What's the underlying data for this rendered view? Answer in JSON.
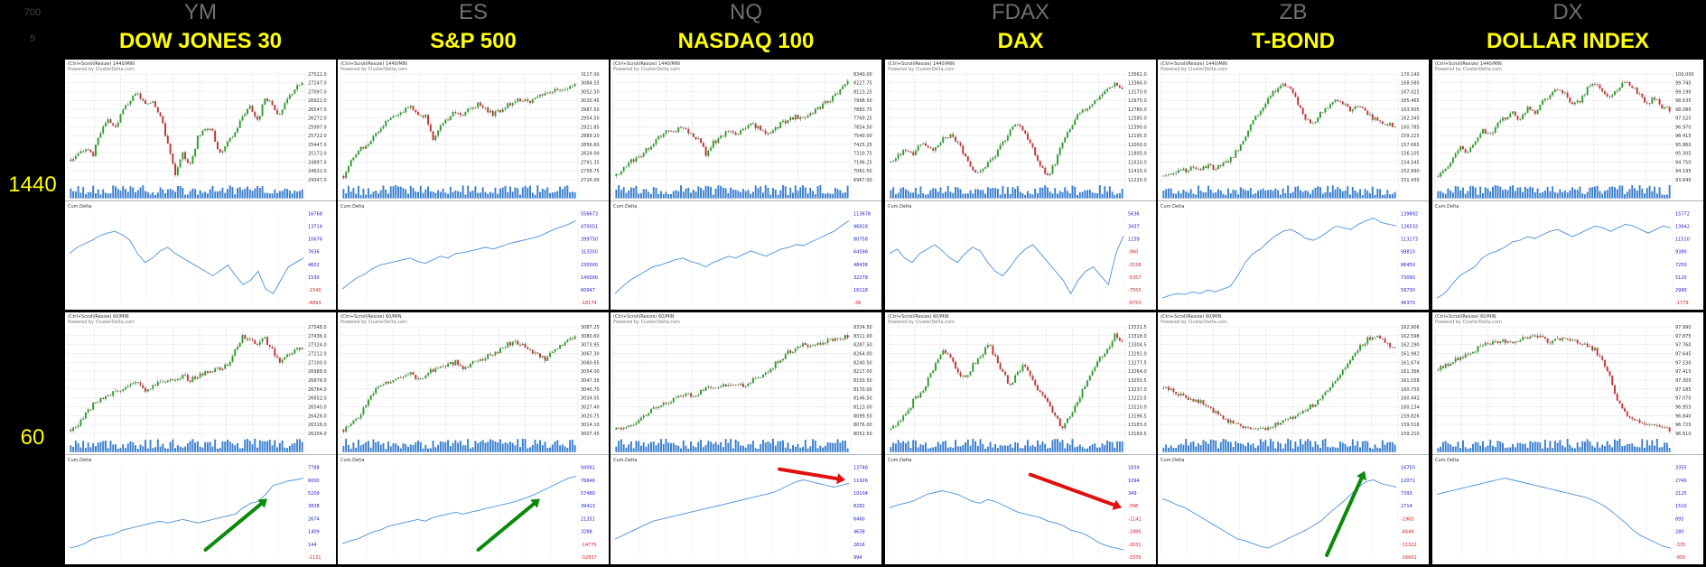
{
  "top_left": {
    "v1": "700",
    "v2": "5"
  },
  "markets": [
    {
      "symbol": "YM",
      "name": "DOW JONES 30"
    },
    {
      "symbol": "ES",
      "name": "S&P 500"
    },
    {
      "symbol": "NQ",
      "name": "NASDAQ 100"
    },
    {
      "symbol": "FDAX",
      "name": "DAX"
    },
    {
      "symbol": "ZB",
      "name": "T-BOND"
    },
    {
      "symbol": "DX",
      "name": "DOLLAR INDEX"
    }
  ],
  "timeframes": [
    "1440",
    "60"
  ],
  "panel_header_1440": [
    "(Ctrl+Scroll/Resize) 1440/MIN",
    "(Ctrl+Scroll/Resize) 1440/MIN",
    "(Ctrl+Scroll/Resize) 1440/MIN",
    "(Ctrl+Scroll/Resize) 1440/MIN",
    "(Ctrl+Scroll/Resize) 1440/MIN",
    "(Ctrl+Scroll/Resize) 1440/MIN"
  ],
  "panel_header_60": [
    "(Ctrl+Scroll/Resize) 60/MIN",
    "(Ctrl+Scroll/Resize) 60/MIN",
    "(Ctrl+Scroll/Resize) 60/MIN",
    "(Ctrl+Scroll/Resize) 60/MIN",
    "(Ctrl+Scroll/Resize) 60/MIN",
    "(Ctrl+Scroll/Resize) 60/MIN"
  ],
  "powered_by": "Powered by ClusterDelta.com",
  "cum_delta_label": "Cum.Delta",
  "colors": {
    "up": "#2aa02a",
    "down": "#c83232",
    "volume": "#3b7fd0",
    "delta_line": "#4a90d9",
    "arrow_green": "#0a8a0a",
    "arrow_red": "#e01010",
    "title": "#ffff00",
    "symbol": "#6f6f6f"
  },
  "chart_data": [
    {
      "market": "YM",
      "timeframe": "1440",
      "type": "line",
      "price_axis": [
        "27522.0",
        "27247.0",
        "27097.0",
        "26922.0",
        "26547.0",
        "26272.0",
        "25997.0",
        "25722.0",
        "25447.0",
        "25172.0",
        "24897.0",
        "24622.0",
        "24347.0"
      ],
      "close": [
        25.8,
        25.9,
        26.0,
        25.9,
        26.3,
        26.5,
        26.4,
        26.7,
        26.9,
        27.0,
        26.8,
        26.9,
        26.6,
        26.1,
        25.5,
        25.9,
        25.7,
        26.2,
        26.4,
        26.3,
        25.9,
        26.1,
        26.3,
        26.6,
        26.8,
        26.5,
        26.9,
        26.8,
        26.6,
        26.9,
        27.1,
        27.2
      ],
      "delta_axis": [
        "16768",
        "13714",
        "10676",
        "7636",
        "4602",
        "1530",
        "-1540",
        "-4893"
      ],
      "delta": [
        0.55,
        0.62,
        0.66,
        0.7,
        0.75,
        0.78,
        0.8,
        0.76,
        0.7,
        0.55,
        0.45,
        0.5,
        0.58,
        0.62,
        0.55,
        0.5,
        0.45,
        0.4,
        0.35,
        0.3,
        0.36,
        0.42,
        0.3,
        0.2,
        0.25,
        0.35,
        0.15,
        0.1,
        0.25,
        0.4,
        0.45,
        0.5
      ]
    },
    {
      "market": "ES",
      "timeframe": "1440",
      "type": "line",
      "price_axis": [
        "3117.00",
        "3084.55",
        "3052.50",
        "3020.45",
        "2987.50",
        "2954.50",
        "2921.85",
        "2889.20",
        "2856.60",
        "2824.00",
        "2791.35",
        "2758.75",
        "2726.00"
      ],
      "close": [
        2.4,
        2.52,
        2.6,
        2.65,
        2.72,
        2.8,
        2.86,
        2.9,
        2.93,
        2.95,
        2.9,
        2.88,
        2.7,
        2.82,
        2.86,
        2.92,
        2.88,
        2.95,
        2.98,
        2.94,
        2.9,
        2.93,
        2.98,
        3.0,
        3.02,
        3.0,
        3.04,
        3.06,
        3.08,
        3.1,
        3.12,
        3.15
      ],
      "delta_axis": [
        "556673",
        "470051",
        "399750",
        "313350",
        "230000",
        "140000",
        "60947",
        "-18174"
      ],
      "delta": [
        0.15,
        0.22,
        0.28,
        0.32,
        0.38,
        0.42,
        0.44,
        0.46,
        0.48,
        0.5,
        0.46,
        0.44,
        0.48,
        0.52,
        0.5,
        0.55,
        0.56,
        0.58,
        0.6,
        0.62,
        0.6,
        0.63,
        0.66,
        0.68,
        0.7,
        0.72,
        0.74,
        0.78,
        0.82,
        0.85,
        0.88,
        0.92
      ]
    },
    {
      "market": "NQ",
      "timeframe": "1440",
      "type": "line",
      "price_axis": [
        "8340.00",
        "8227.75",
        "8113.25",
        "7998.50",
        "7883.75",
        "7769.25",
        "7654.50",
        "7540.00",
        "7425.25",
        "7310.75",
        "7196.25",
        "7081.50",
        "6967.00"
      ],
      "close": [
        7.0,
        7.1,
        7.2,
        7.25,
        7.35,
        7.45,
        7.55,
        7.6,
        7.62,
        7.66,
        7.55,
        7.5,
        7.3,
        7.45,
        7.52,
        7.6,
        7.55,
        7.62,
        7.7,
        7.65,
        7.58,
        7.62,
        7.7,
        7.75,
        7.8,
        7.78,
        7.85,
        7.9,
        7.98,
        8.05,
        8.15,
        8.25
      ],
      "delta_axis": [
        "113678",
        "96818",
        "80758",
        "64598",
        "48438",
        "32278",
        "16118",
        "-38"
      ],
      "delta": [
        0.1,
        0.18,
        0.25,
        0.3,
        0.35,
        0.4,
        0.42,
        0.45,
        0.48,
        0.5,
        0.46,
        0.44,
        0.4,
        0.45,
        0.48,
        0.52,
        0.5,
        0.54,
        0.58,
        0.55,
        0.52,
        0.56,
        0.6,
        0.62,
        0.65,
        0.64,
        0.68,
        0.72,
        0.76,
        0.8,
        0.86,
        0.92
      ]
    },
    {
      "market": "FDAX",
      "timeframe": "1440",
      "type": "line",
      "price_axis": [
        "13561.0",
        "13366.0",
        "13170.0",
        "12975.0",
        "12780.0",
        "12585.0",
        "12390.0",
        "12195.0",
        "12000.0",
        "11805.0",
        "11610.0",
        "11415.0",
        "11220.0"
      ],
      "close": [
        12.0,
        12.1,
        12.2,
        12.15,
        12.3,
        12.25,
        12.2,
        12.35,
        12.4,
        12.3,
        12.1,
        11.9,
        11.85,
        12.0,
        12.1,
        12.3,
        12.5,
        12.6,
        12.45,
        12.2,
        11.95,
        11.8,
        12.0,
        12.3,
        12.5,
        12.7,
        12.8,
        12.9,
        13.0,
        13.1,
        13.2,
        13.1
      ],
      "delta_axis": [
        "5636",
        "3437",
        "1239",
        "-960",
        "-3158",
        "-5357",
        "-7555",
        "-9753"
      ],
      "delta": [
        0.55,
        0.6,
        0.5,
        0.45,
        0.55,
        0.6,
        0.65,
        0.58,
        0.5,
        0.45,
        0.55,
        0.62,
        0.58,
        0.45,
        0.35,
        0.3,
        0.4,
        0.52,
        0.6,
        0.65,
        0.55,
        0.45,
        0.35,
        0.25,
        0.1,
        0.25,
        0.35,
        0.4,
        0.3,
        0.2,
        0.55,
        0.75
      ]
    },
    {
      "market": "ZB",
      "timeframe": "1440",
      "type": "line",
      "price_axis": [
        "170.140",
        "168.580",
        "167.025",
        "165.465",
        "163.905",
        "162.345",
        "160.785",
        "159.225",
        "157.665",
        "156.105",
        "154.545",
        "152.990",
        "151.430"
      ],
      "close": [
        152.5,
        153.0,
        153.4,
        153.2,
        153.8,
        153.5,
        154.0,
        153.6,
        154.2,
        155.0,
        156.5,
        158.5,
        160.5,
        162.0,
        163.5,
        165.0,
        166.0,
        165.2,
        163.0,
        161.0,
        160.0,
        161.5,
        162.5,
        163.5,
        163.0,
        162.0,
        162.8,
        162.0,
        161.0,
        160.5,
        160.0,
        159.8
      ],
      "delta_axis": [
        "139892",
        "126532",
        "113173",
        "99810",
        "86450",
        "73090",
        "59730",
        "46370"
      ],
      "delta": [
        0.05,
        0.08,
        0.1,
        0.09,
        0.12,
        0.1,
        0.14,
        0.12,
        0.15,
        0.18,
        0.3,
        0.45,
        0.55,
        0.6,
        0.68,
        0.75,
        0.8,
        0.82,
        0.78,
        0.72,
        0.7,
        0.74,
        0.8,
        0.86,
        0.84,
        0.82,
        0.88,
        0.92,
        0.95,
        0.9,
        0.88,
        0.86
      ]
    },
    {
      "market": "DX",
      "timeframe": "1440",
      "type": "line",
      "price_axis": [
        "100.000",
        "99.745",
        "99.190",
        "98.635",
        "98.080",
        "97.525",
        "96.970",
        "96.415",
        "95.860",
        "95.305",
        "94.750",
        "94.195",
        "93.640"
      ],
      "close": [
        95.2,
        95.5,
        95.8,
        96.2,
        96.0,
        96.4,
        96.8,
        96.6,
        97.0,
        97.2,
        97.4,
        97.1,
        97.6,
        97.4,
        97.8,
        98.0,
        98.2,
        98.0,
        97.6,
        97.8,
        98.2,
        98.4,
        98.1,
        97.9,
        98.2,
        98.4,
        98.3,
        98.0,
        97.7,
        97.9,
        97.6,
        97.5
      ],
      "delta_axis": [
        "15772",
        "13642",
        "11510",
        "9380",
        "7250",
        "5120",
        "2990",
        "-1779"
      ],
      "delta": [
        0.05,
        0.1,
        0.2,
        0.3,
        0.35,
        0.4,
        0.5,
        0.55,
        0.58,
        0.62,
        0.68,
        0.7,
        0.74,
        0.72,
        0.76,
        0.8,
        0.82,
        0.78,
        0.74,
        0.78,
        0.82,
        0.86,
        0.84,
        0.8,
        0.84,
        0.88,
        0.86,
        0.82,
        0.78,
        0.82,
        0.86,
        0.84
      ]
    },
    {
      "market": "YM",
      "timeframe": "60",
      "type": "line",
      "price_axis": [
        "27548.0",
        "27436.0",
        "27324.0",
        "27212.0",
        "27100.0",
        "26988.0",
        "26876.0",
        "26764.0",
        "26652.0",
        "26540.0",
        "26428.0",
        "26316.0",
        "26204.0"
      ],
      "close": [
        26.5,
        26.55,
        26.65,
        26.75,
        26.8,
        26.85,
        26.9,
        26.92,
        26.95,
        26.98,
        26.9,
        26.95,
        27.0,
        26.98,
        27.02,
        27.05,
        27.0,
        27.04,
        27.08,
        27.1,
        27.12,
        27.15,
        27.3,
        27.45,
        27.4,
        27.38,
        27.42,
        27.3,
        27.2,
        27.25,
        27.3,
        27.32
      ],
      "delta_axis": [
        "7788",
        "6000",
        "5209",
        "3838",
        "2674",
        "1409",
        "144",
        "-1131"
      ],
      "delta": [
        0.1,
        0.12,
        0.15,
        0.2,
        0.22,
        0.24,
        0.26,
        0.3,
        0.32,
        0.34,
        0.36,
        0.38,
        0.4,
        0.38,
        0.4,
        0.42,
        0.4,
        0.38,
        0.4,
        0.42,
        0.44,
        0.46,
        0.48,
        0.55,
        0.6,
        0.62,
        0.7,
        0.8,
        0.82,
        0.85,
        0.86,
        0.88
      ]
    },
    {
      "market": "ES",
      "timeframe": "60",
      "type": "line",
      "price_axis": [
        "3087.25",
        "3080.60",
        "3073.95",
        "3067.30",
        "3060.65",
        "3054.00",
        "3047.35",
        "3040.70",
        "3034.05",
        "3027.40",
        "3020.75",
        "3014.10",
        "3007.45"
      ],
      "close": [
        3.01,
        3.015,
        3.02,
        3.03,
        3.04,
        3.045,
        3.048,
        3.05,
        3.052,
        3.055,
        3.05,
        3.054,
        3.058,
        3.06,
        3.062,
        3.064,
        3.06,
        3.062,
        3.065,
        3.068,
        3.07,
        3.074,
        3.078,
        3.08,
        3.078,
        3.074,
        3.07,
        3.066,
        3.072,
        3.078,
        3.082,
        3.085
      ],
      "delta_axis": [
        "94091",
        "76646",
        "57480",
        "39413",
        "21351",
        "3288",
        "-14775",
        "-32837"
      ],
      "delta": [
        0.15,
        0.18,
        0.2,
        0.24,
        0.28,
        0.3,
        0.34,
        0.36,
        0.38,
        0.4,
        0.42,
        0.4,
        0.44,
        0.46,
        0.48,
        0.5,
        0.48,
        0.5,
        0.52,
        0.54,
        0.56,
        0.58,
        0.6,
        0.62,
        0.65,
        0.68,
        0.72,
        0.76,
        0.8,
        0.84,
        0.88,
        0.9
      ]
    },
    {
      "market": "NQ",
      "timeframe": "60",
      "type": "line",
      "price_axis": [
        "8334.50",
        "8311.00",
        "8287.50",
        "8264.00",
        "8240.50",
        "8217.00",
        "8193.50",
        "8170.00",
        "8146.50",
        "8123.00",
        "8099.50",
        "8076.00",
        "8052.50"
      ],
      "close": [
        8.06,
        8.065,
        8.07,
        8.085,
        8.1,
        8.12,
        8.135,
        8.14,
        8.15,
        8.16,
        8.155,
        8.165,
        8.175,
        8.18,
        8.185,
        8.19,
        8.18,
        8.186,
        8.195,
        8.21,
        8.22,
        8.24,
        8.26,
        8.28,
        8.29,
        8.3,
        8.295,
        8.305,
        8.31,
        8.315,
        8.32,
        8.325
      ],
      "delta_axis": [
        "13748",
        "11926",
        "10104",
        "8282",
        "6460",
        "4638",
        "2816",
        "994"
      ],
      "delta": [
        0.2,
        0.24,
        0.28,
        0.32,
        0.36,
        0.4,
        0.42,
        0.44,
        0.46,
        0.48,
        0.5,
        0.52,
        0.54,
        0.56,
        0.58,
        0.6,
        0.62,
        0.64,
        0.66,
        0.68,
        0.7,
        0.72,
        0.76,
        0.8,
        0.84,
        0.86,
        0.84,
        0.82,
        0.8,
        0.78,
        0.8,
        0.82
      ]
    },
    {
      "market": "FDAX",
      "timeframe": "60",
      "type": "line",
      "price_axis": [
        "13331.5",
        "13318.0",
        "13304.5",
        "13291.0",
        "13277.5",
        "13264.0",
        "13250.5",
        "13237.0",
        "13223.5",
        "13210.0",
        "13196.5",
        "13183.0",
        "13169.5"
      ],
      "close": [
        13.2,
        13.21,
        13.22,
        13.24,
        13.25,
        13.27,
        13.29,
        13.31,
        13.3,
        13.28,
        13.27,
        13.29,
        13.3,
        13.32,
        13.3,
        13.28,
        13.26,
        13.28,
        13.29,
        13.27,
        13.25,
        13.24,
        13.22,
        13.2,
        13.22,
        13.24,
        13.26,
        13.28,
        13.3,
        13.31,
        13.33,
        13.32
      ],
      "delta_axis": [
        "1839",
        "1094",
        "349",
        "-396",
        "-1141",
        "-1886",
        "-2631",
        "-3376"
      ],
      "delta": [
        0.55,
        0.58,
        0.6,
        0.62,
        0.66,
        0.7,
        0.72,
        0.74,
        0.72,
        0.7,
        0.66,
        0.62,
        0.6,
        0.64,
        0.62,
        0.58,
        0.54,
        0.5,
        0.48,
        0.46,
        0.44,
        0.4,
        0.38,
        0.35,
        0.3,
        0.28,
        0.25,
        0.2,
        0.15,
        0.12,
        0.1,
        0.08
      ]
    },
    {
      "market": "ZB",
      "timeframe": "60",
      "type": "line",
      "price_axis": [
        "162.906",
        "162.598",
        "162.290",
        "161.982",
        "161.674",
        "161.366",
        "161.058",
        "160.750",
        "160.442",
        "160.134",
        "159.826",
        "159.518",
        "159.210"
      ],
      "close": [
        160.8,
        160.75,
        160.6,
        160.5,
        160.4,
        160.3,
        160.1,
        159.9,
        159.7,
        159.6,
        159.5,
        159.4,
        159.35,
        159.3,
        159.4,
        159.5,
        159.6,
        159.7,
        159.8,
        160.0,
        160.2,
        160.4,
        160.7,
        161.0,
        161.4,
        161.8,
        162.2,
        162.5,
        162.7,
        162.6,
        162.4,
        162.3
      ],
      "delta_axis": [
        "16750",
        "12071",
        "7393",
        "2714",
        "-1965",
        "-6644",
        "-11322",
        "-16001"
      ],
      "delta": [
        0.65,
        0.62,
        0.58,
        0.55,
        0.5,
        0.45,
        0.4,
        0.35,
        0.3,
        0.25,
        0.2,
        0.18,
        0.15,
        0.12,
        0.1,
        0.14,
        0.18,
        0.22,
        0.26,
        0.3,
        0.35,
        0.4,
        0.48,
        0.55,
        0.62,
        0.7,
        0.78,
        0.84,
        0.86,
        0.82,
        0.8,
        0.78
      ]
    },
    {
      "market": "DX",
      "timeframe": "60",
      "type": "line",
      "price_axis": [
        "97.990",
        "97.875",
        "97.760",
        "97.645",
        "97.530",
        "97.415",
        "97.300",
        "97.185",
        "97.070",
        "96.955",
        "96.840",
        "96.725",
        "96.610"
      ],
      "close": [
        97.5,
        97.55,
        97.6,
        97.65,
        97.7,
        97.75,
        97.8,
        97.82,
        97.84,
        97.86,
        97.85,
        97.88,
        97.9,
        97.92,
        97.88,
        97.85,
        97.88,
        97.9,
        97.86,
        97.82,
        97.8,
        97.75,
        97.6,
        97.4,
        97.1,
        96.95,
        96.9,
        96.85,
        96.8,
        96.82,
        96.78,
        96.75
      ],
      "delta_axis": [
        "3355",
        "2740",
        "2125",
        "1510",
        "895",
        "280",
        "-335",
        "-950"
      ],
      "delta": [
        0.7,
        0.72,
        0.74,
        0.76,
        0.78,
        0.8,
        0.82,
        0.84,
        0.86,
        0.88,
        0.86,
        0.84,
        0.82,
        0.8,
        0.78,
        0.76,
        0.74,
        0.72,
        0.7,
        0.68,
        0.66,
        0.62,
        0.58,
        0.52,
        0.45,
        0.38,
        0.3,
        0.24,
        0.2,
        0.16,
        0.12,
        0.1
      ]
    }
  ],
  "arrows": [
    {
      "panel": "YM-60",
      "color": "green",
      "direction": "up"
    },
    {
      "panel": "ES-60",
      "color": "green",
      "direction": "up"
    },
    {
      "panel": "NQ-60",
      "color": "red",
      "direction": "down"
    },
    {
      "panel": "FDAX-60",
      "color": "red",
      "direction": "down"
    },
    {
      "panel": "ZB-60",
      "color": "green",
      "direction": "up"
    }
  ]
}
